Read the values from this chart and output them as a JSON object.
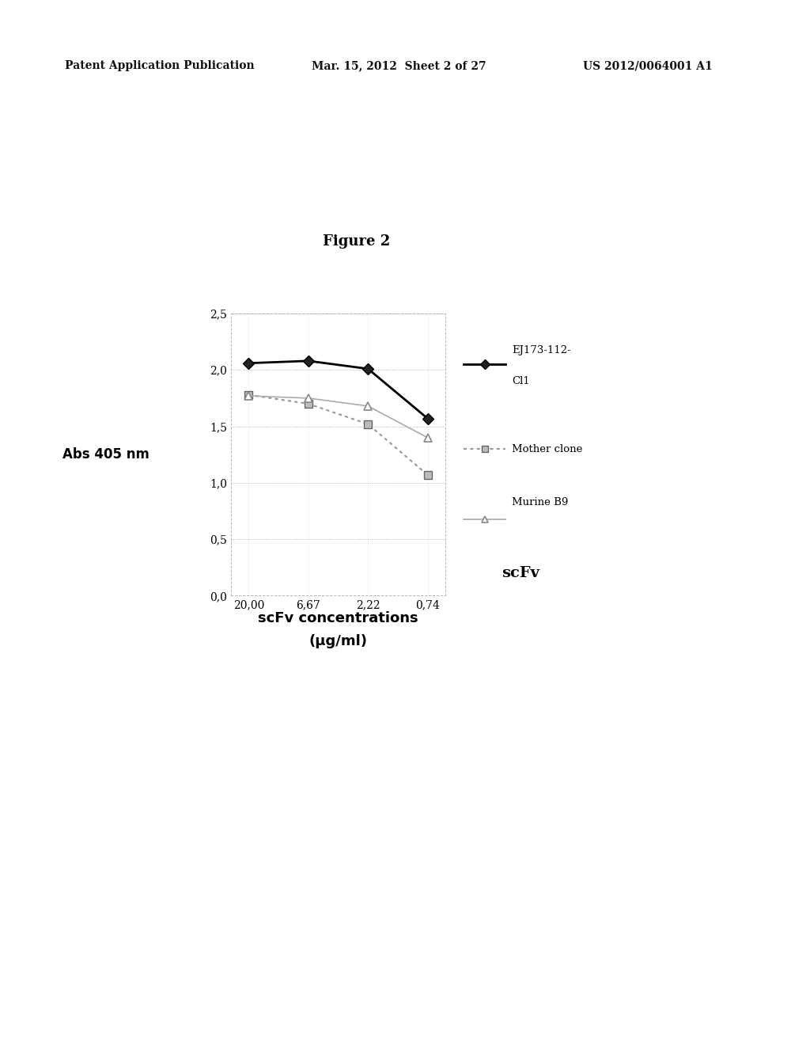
{
  "header_left": "Patent Application Publication",
  "header_center": "Mar. 15, 2012  Sheet 2 of 27",
  "header_right": "US 2012/0064001 A1",
  "figure_title": "Figure 2",
  "xlabel_line1": "scFv concentrations",
  "xlabel_line2": "(μg/ml)",
  "ylabel": "Abs 405 nm",
  "x_tick_labels": [
    "20,00",
    "6,67",
    "2,22",
    "0,74"
  ],
  "x_values": [
    0,
    1,
    2,
    3
  ],
  "series": [
    {
      "name": "EJ173",
      "label1": "EJ173-112-",
      "label2": "Cl1",
      "values": [
        2.06,
        2.08,
        2.01,
        1.57
      ],
      "color": "#000000",
      "linestyle": "solid",
      "marker": "D",
      "markersize": 7,
      "linewidth": 2.0
    },
    {
      "name": "Mother",
      "label1": "Mother clone",
      "label2": "",
      "values": [
        1.78,
        1.7,
        1.52,
        1.07
      ],
      "color": "#888888",
      "linestyle": "dotted",
      "marker": "s",
      "markersize": 7,
      "linewidth": 1.5
    },
    {
      "name": "Murine",
      "label1": "Murine B9",
      "label2": "scFv",
      "values": [
        1.77,
        1.75,
        1.68,
        1.4
      ],
      "color": "#999999",
      "linestyle": "solid",
      "marker": "^",
      "markersize": 7,
      "linewidth": 1.2
    }
  ],
  "ylim": [
    0.0,
    2.5
  ],
  "ytick_values": [
    0.0,
    0.5,
    1.0,
    1.5,
    2.0,
    2.5
  ],
  "ytick_labels": [
    "0,0",
    "0,5",
    "1,0",
    "1,5",
    "2,0",
    "2,5"
  ],
  "background_color": "#ffffff"
}
